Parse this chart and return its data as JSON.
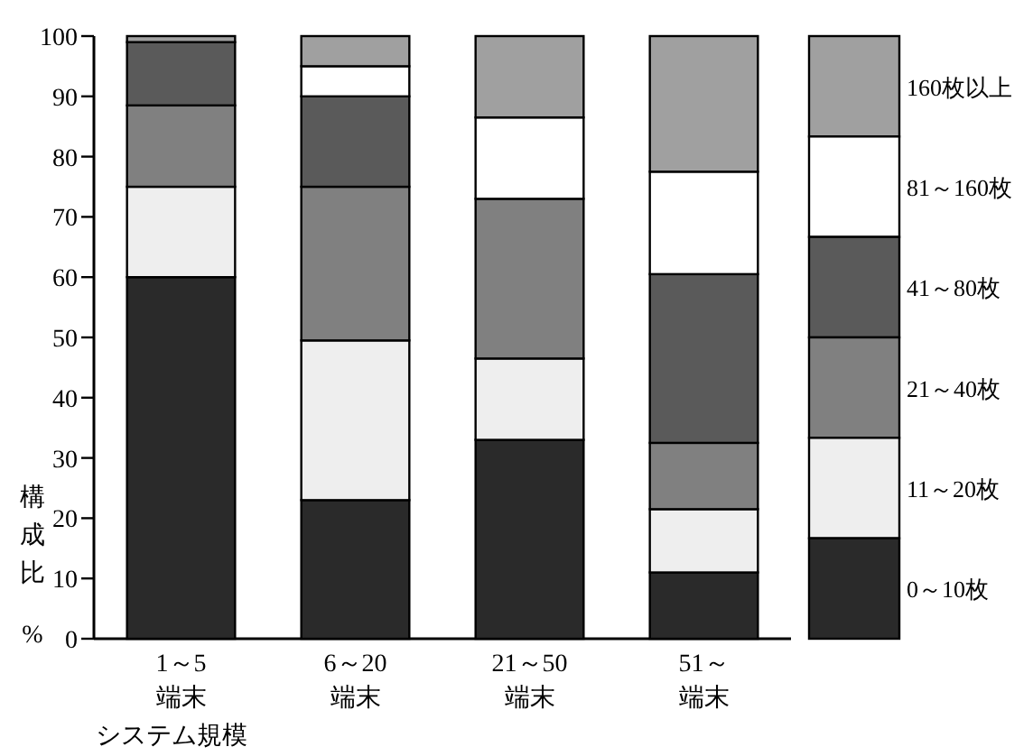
{
  "chart_data": {
    "type": "bar",
    "stacked": true,
    "categories": [
      "1～5端末",
      "6～20端末",
      "21～50端末",
      "51～端末"
    ],
    "xlabel": "システム規模",
    "ylabel": "構成比%",
    "ylim": [
      0,
      100
    ],
    "yticks": [
      0,
      10,
      20,
      30,
      40,
      50,
      60,
      70,
      80,
      90,
      100
    ],
    "legend": "right",
    "series": [
      {
        "name": "0～10枚",
        "color": "#2a2a2a",
        "values": [
          60,
          23,
          33,
          11
        ]
      },
      {
        "name": "11～20枚",
        "color": "#eeeeee",
        "values": [
          15,
          26.5,
          13.5,
          10.5
        ]
      },
      {
        "name": "21～40枚",
        "color": "#808080",
        "values": [
          13.5,
          25.5,
          26.5,
          11
        ]
      },
      {
        "name": "41～80枚",
        "color": "#5a5a5a",
        "values": [
          10.5,
          15,
          0,
          28
        ]
      },
      {
        "name": "81～160枚",
        "color": "#ffffff",
        "values": [
          0,
          5,
          13.5,
          17
        ]
      },
      {
        "name": "160枚以上",
        "color": "#a0a0a0",
        "values": [
          1,
          5,
          13.5,
          22.5
        ]
      }
    ]
  }
}
